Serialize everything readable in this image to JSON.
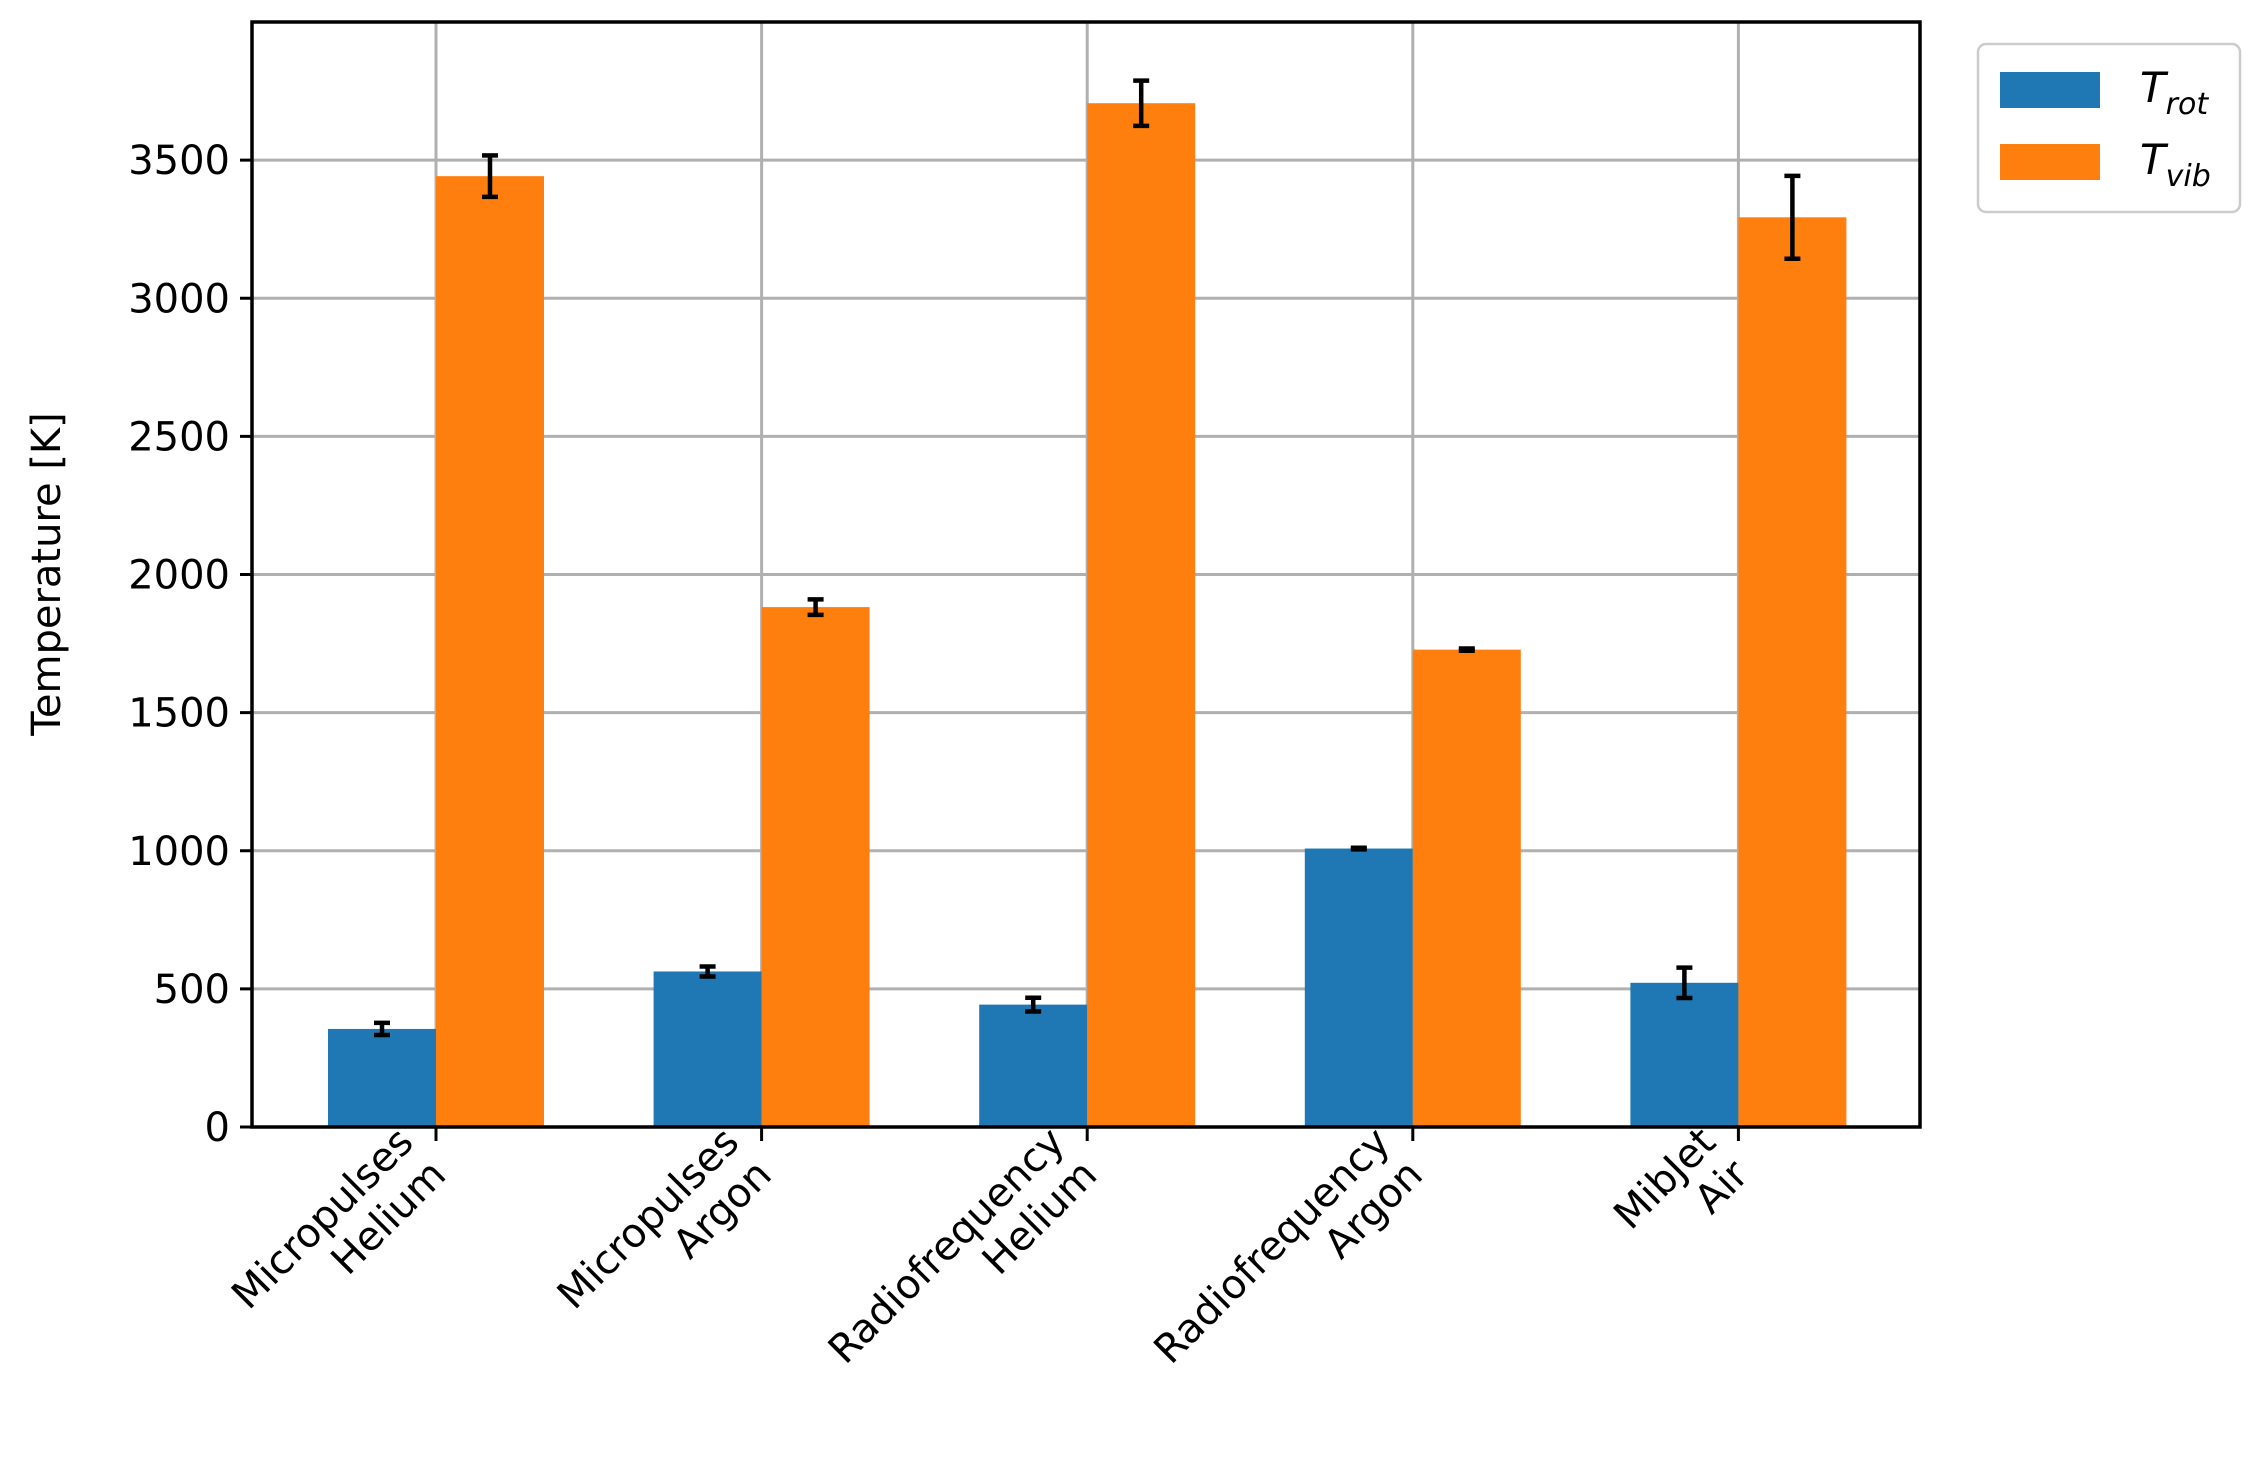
{
  "chart_data": {
    "type": "bar",
    "title": "",
    "xlabel": "",
    "ylabel": "Temperature [K]",
    "ylim": [
      0,
      4000
    ],
    "yticks": [
      0,
      500,
      1000,
      1500,
      2000,
      2500,
      3000,
      3500
    ],
    "categories": [
      [
        "Micropulses",
        "Helium"
      ],
      [
        "Micropulses",
        "Argon"
      ],
      [
        "Radiofrequency",
        "Helium"
      ],
      [
        "Radiofrequency",
        "Argon"
      ],
      [
        "MibJet",
        "Air"
      ]
    ],
    "series": [
      {
        "name": "T",
        "name_subscript": "rot",
        "color": "#1f77b4",
        "values": [
          355,
          563,
          443,
          1008,
          522
        ],
        "errors": [
          22,
          18,
          25,
          3,
          55
        ]
      },
      {
        "name": "T",
        "name_subscript": "vib",
        "color": "#ff7f0e",
        "values": [
          3442,
          1882,
          3706,
          1728,
          3293
        ],
        "errors": [
          75,
          28,
          82,
          4,
          150
        ]
      }
    ],
    "grid": true,
    "legend_position": "outside-top-right",
    "xtick_rotation": 45,
    "colors": {
      "grid": "#b0b0b0",
      "axis": "#000000",
      "error_bar": "#000000"
    }
  }
}
